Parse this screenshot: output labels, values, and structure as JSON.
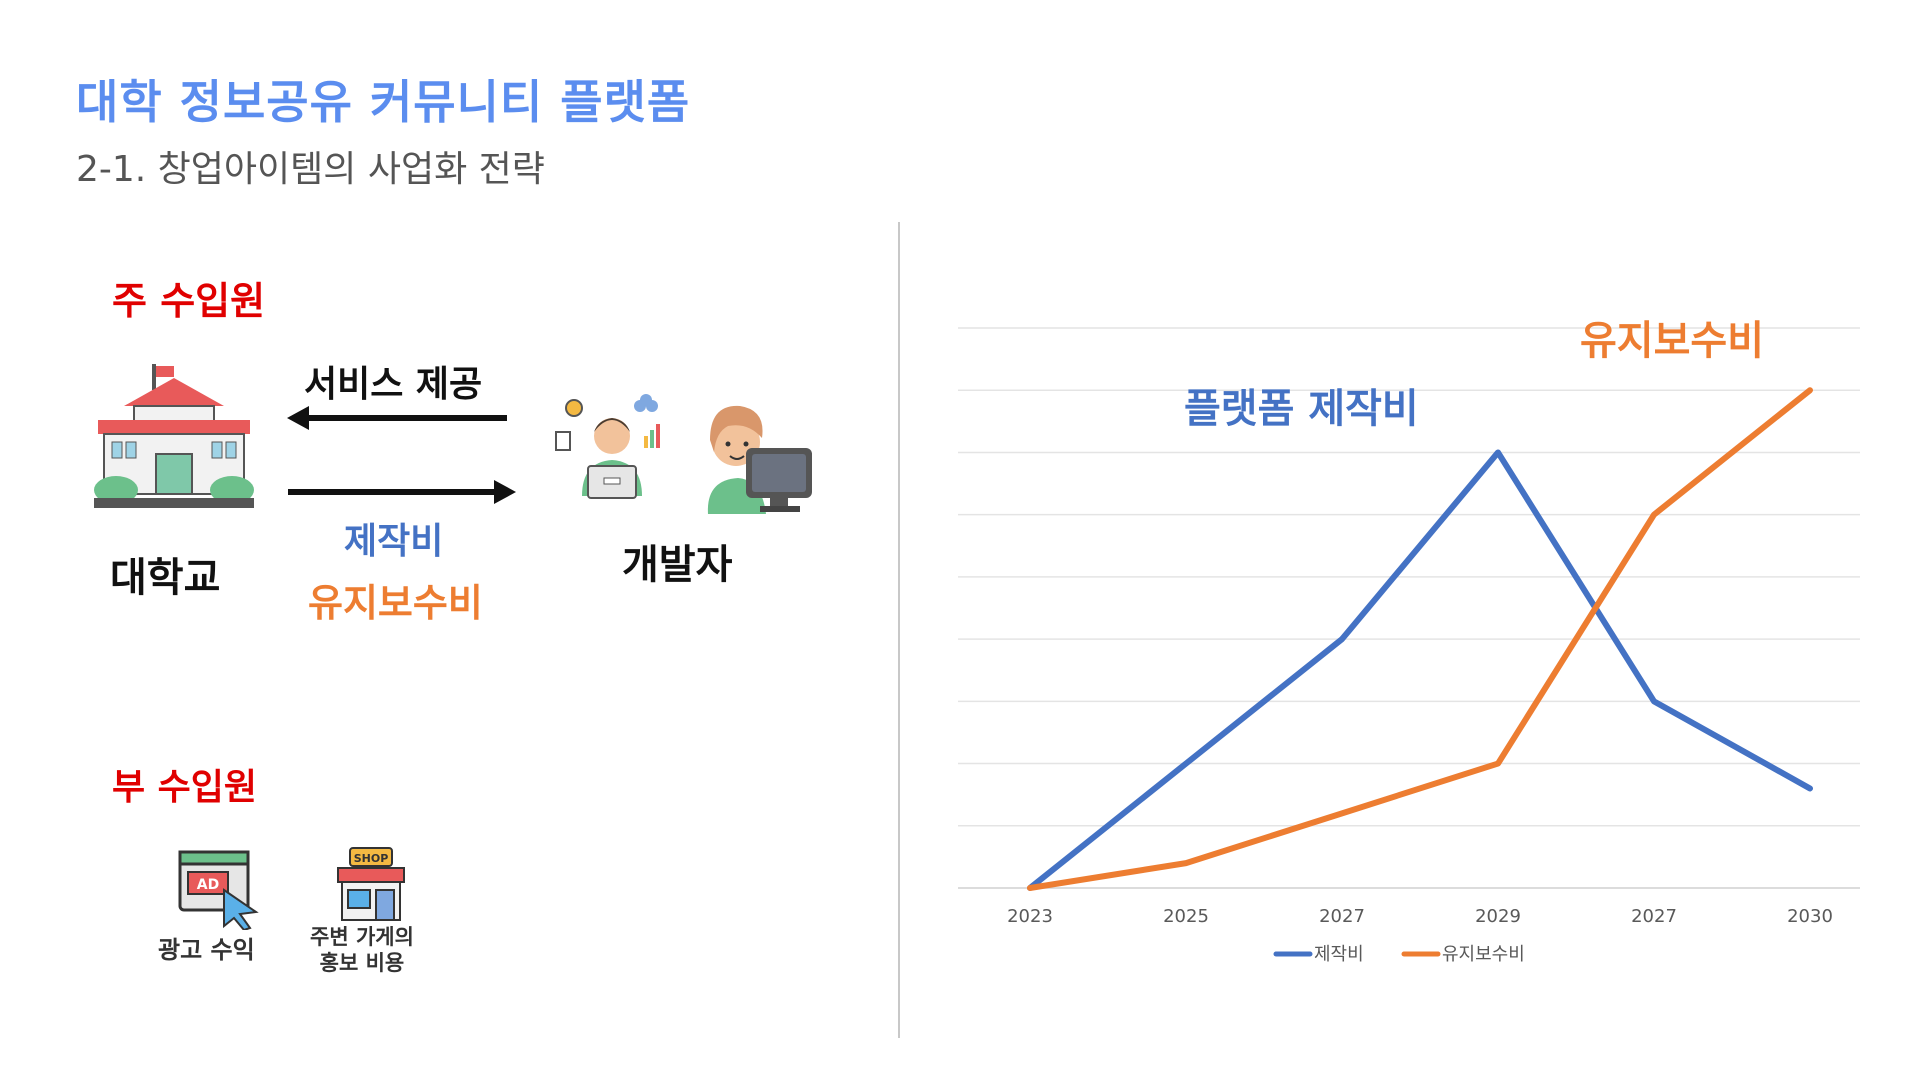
{
  "header": {
    "title": "대학 정보공유 커뮤니티 플랫폼",
    "subtitle": "2-1. 창업아이템의 사업화 전략"
  },
  "left": {
    "main_revenue_heading": "주 수입원",
    "service_label": "서비스 제공",
    "university_label": "대학교",
    "developer_label": "개발자",
    "production_cost_label": "제작비",
    "maintenance_cost_label": "유지보수비",
    "sub_revenue_heading": "부 수입원",
    "ad_label": "광고 수익",
    "store_label_line1": "주변 가게의",
    "store_label_line2": "홍보 비용",
    "ad_icon_text": "AD",
    "shop_icon_text": "SHOP"
  },
  "colors": {
    "blue": "#4472c4",
    "orange": "#ed7d31",
    "red": "#e00000",
    "title": "#5b8def"
  },
  "chart_data": {
    "type": "line",
    "categories": [
      "2023",
      "2025",
      "2027",
      "2029",
      "2027",
      "2030"
    ],
    "series": [
      {
        "name": "제작비",
        "values": [
          0,
          2,
          4,
          7,
          3,
          1.6
        ],
        "color": "#4472c4"
      },
      {
        "name": "유지보수비",
        "values": [
          0,
          0.4,
          1.2,
          2,
          6,
          8
        ],
        "color": "#ed7d31"
      }
    ],
    "annotations": [
      "플랫폼 제작비",
      "유지보수비"
    ],
    "ylim": [
      0,
      9
    ],
    "grid": true,
    "legend": "bottom"
  }
}
